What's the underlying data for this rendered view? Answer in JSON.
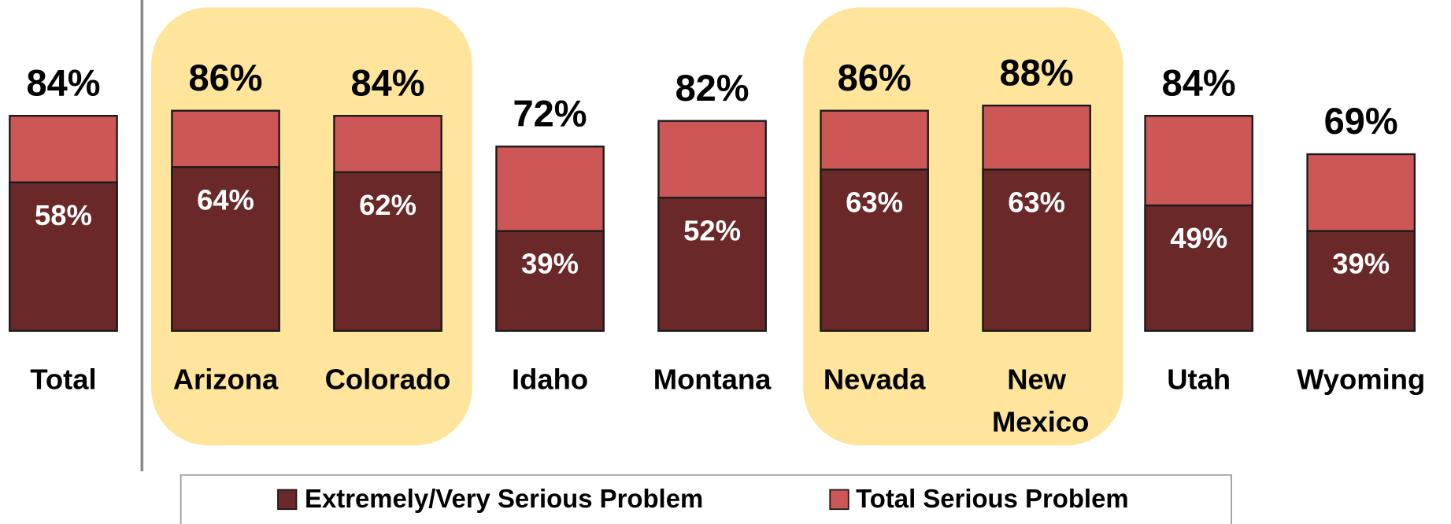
{
  "chart_data": {
    "type": "bar",
    "categories": [
      "Total",
      "Arizona",
      "Colorado",
      "Idaho",
      "Montana",
      "Nevada",
      "New Mexico",
      "Utah",
      "Wyoming"
    ],
    "series": [
      {
        "name": "Total Serious Problem",
        "color": "#cd5656",
        "values": [
          84,
          86,
          84,
          72,
          82,
          86,
          88,
          84,
          69
        ]
      },
      {
        "name": "Extremely/Very Serious Problem",
        "color": "#6b2829",
        "values": [
          58,
          64,
          62,
          39,
          52,
          63,
          63,
          49,
          39
        ]
      }
    ],
    "value_labels": [
      [
        "84%",
        "86%",
        "84%",
        "72%",
        "82%",
        "86%",
        "88%",
        "84%",
        "69%"
      ],
      [
        "58%",
        "64%",
        "62%",
        "39%",
        "52%",
        "63%",
        "63%",
        "49%",
        "39%"
      ]
    ],
    "ylim": [
      0,
      100
    ]
  }
}
